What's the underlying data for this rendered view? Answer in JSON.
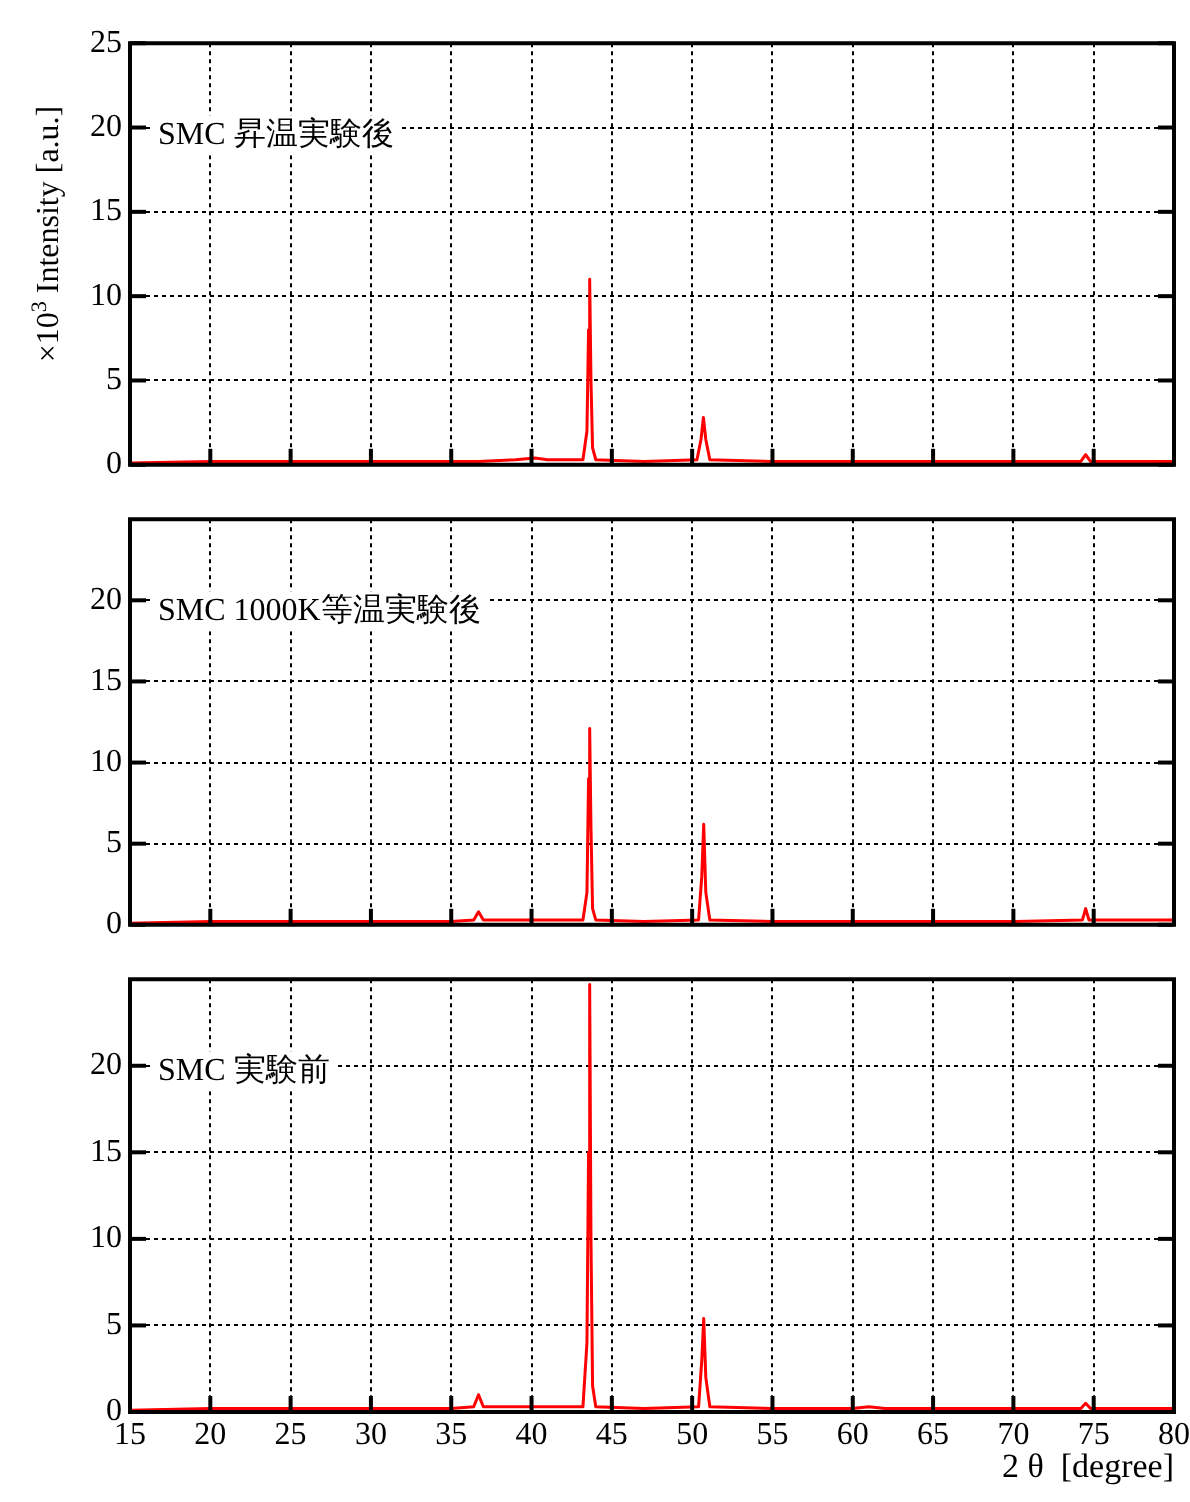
{
  "chart_data": [
    {
      "type": "line",
      "ylabel": "×10$^{3}$ Intensity [a.u.]",
      "annotations": [
        "SMC 昇温実験後"
      ],
      "xlim": [
        15,
        80
      ],
      "xticks": [
        15,
        20,
        25,
        30,
        35,
        40,
        45,
        50,
        55,
        60,
        65,
        70,
        75,
        80
      ],
      "ylim": [
        0,
        25
      ],
      "yticks": [
        0,
        5,
        10,
        15,
        20,
        25
      ],
      "grid": true,
      "legend": false,
      "marker": "none",
      "line_style": "solid",
      "tick_labels": "y",
      "series": [
        {
          "color": "#ff0000",
          "x": [
            15,
            20,
            25,
            30,
            35,
            36.7,
            39,
            40.2,
            41,
            43.2,
            43.45,
            43.55,
            43.62,
            43.7,
            43.8,
            44.0,
            47,
            50.3,
            50.55,
            50.7,
            50.85,
            51.1,
            55,
            60,
            65,
            70,
            74.2,
            74.5,
            74.8,
            80
          ],
          "values": [
            0.1,
            0.2,
            0.2,
            0.2,
            0.2,
            0.2,
            0.3,
            0.4,
            0.3,
            0.3,
            2,
            8,
            11.0,
            5,
            1,
            0.3,
            0.2,
            0.3,
            1.5,
            2.8,
            1.5,
            0.3,
            0.2,
            0.2,
            0.2,
            0.2,
            0.2,
            0.6,
            0.2,
            0.2
          ]
        }
      ]
    },
    {
      "type": "line",
      "annotations": [
        "SMC 1000K等温実験後"
      ],
      "xlim": [
        15,
        80
      ],
      "xticks": [
        15,
        20,
        25,
        30,
        35,
        40,
        45,
        50,
        55,
        60,
        65,
        70,
        75,
        80
      ],
      "ylim": [
        0,
        25
      ],
      "yticks": [
        0,
        5,
        10,
        15,
        20
      ],
      "grid": true,
      "legend": false,
      "marker": "none",
      "line_style": "solid",
      "tick_labels": "y",
      "series": [
        {
          "color": "#ff0000",
          "x": [
            15,
            20,
            25,
            30,
            35,
            36.4,
            36.7,
            37.0,
            40,
            43.2,
            43.45,
            43.55,
            43.62,
            43.7,
            43.8,
            44.0,
            47,
            50.4,
            50.6,
            50.72,
            50.85,
            51.1,
            55,
            60,
            65,
            70,
            74.3,
            74.5,
            74.7,
            80
          ],
          "values": [
            0.1,
            0.2,
            0.2,
            0.2,
            0.2,
            0.3,
            0.8,
            0.3,
            0.3,
            0.3,
            2,
            9,
            12.1,
            6,
            1,
            0.3,
            0.2,
            0.3,
            3,
            6.2,
            2,
            0.3,
            0.2,
            0.2,
            0.2,
            0.2,
            0.3,
            1.0,
            0.3,
            0.3
          ]
        }
      ]
    },
    {
      "type": "line",
      "xlabel": "2 θ  [degree]",
      "annotations": [
        "SMC 実験前"
      ],
      "xlim": [
        15,
        80
      ],
      "xticks": [
        15,
        20,
        25,
        30,
        35,
        40,
        45,
        50,
        55,
        60,
        65,
        70,
        75,
        80
      ],
      "ylim": [
        0,
        25
      ],
      "yticks": [
        0,
        5,
        10,
        15,
        20
      ],
      "grid": true,
      "legend": false,
      "marker": "none",
      "line_style": "solid",
      "series": [
        {
          "color": "#ff0000",
          "x": [
            15,
            20,
            25,
            30,
            35,
            36.4,
            36.7,
            37.0,
            40,
            43.2,
            43.45,
            43.55,
            43.62,
            43.7,
            43.8,
            44.0,
            47,
            50.4,
            50.6,
            50.72,
            50.85,
            51.1,
            55,
            60,
            61,
            62,
            65,
            70,
            74.2,
            74.5,
            74.8,
            80
          ],
          "values": [
            0.1,
            0.2,
            0.2,
            0.2,
            0.2,
            0.3,
            1.0,
            0.3,
            0.3,
            0.3,
            4,
            15,
            24.7,
            10,
            1.5,
            0.3,
            0.2,
            0.3,
            3,
            5.4,
            2,
            0.3,
            0.2,
            0.2,
            0.3,
            0.2,
            0.2,
            0.2,
            0.2,
            0.5,
            0.2,
            0.2
          ]
        }
      ]
    }
  ]
}
